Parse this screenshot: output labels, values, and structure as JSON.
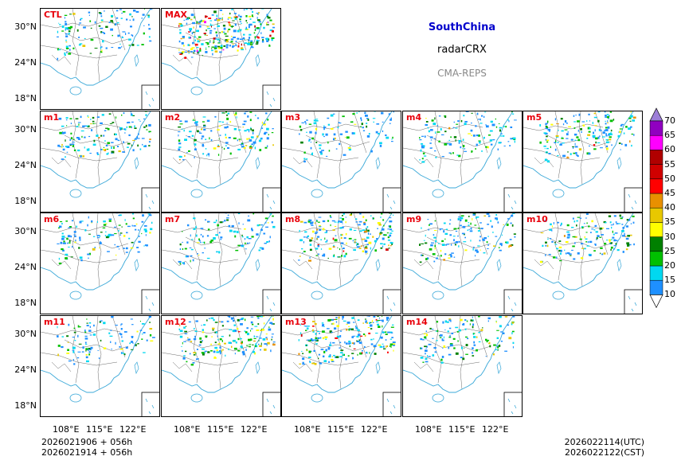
{
  "title": {
    "region": "SouthChina",
    "product": "radarCRX",
    "system": "CMA-REPS"
  },
  "panels": [
    {
      "id": "CTL",
      "label": "CTL",
      "row": 0,
      "col": 0,
      "intensity": 0.35
    },
    {
      "id": "MAX",
      "label": "MAX",
      "row": 0,
      "col": 1,
      "intensity": 1.0
    },
    {
      "id": "m1",
      "label": "m1",
      "row": 1,
      "col": 0,
      "intensity": 0.5
    },
    {
      "id": "m2",
      "label": "m2",
      "row": 1,
      "col": 1,
      "intensity": 0.45
    },
    {
      "id": "m3",
      "label": "m3",
      "row": 1,
      "col": 2,
      "intensity": 0.3
    },
    {
      "id": "m4",
      "label": "m4",
      "row": 1,
      "col": 3,
      "intensity": 0.4
    },
    {
      "id": "m5",
      "label": "m5",
      "row": 1,
      "col": 4,
      "intensity": 0.55
    },
    {
      "id": "m6",
      "label": "m6",
      "row": 2,
      "col": 0,
      "intensity": 0.35
    },
    {
      "id": "m7",
      "label": "m7",
      "row": 2,
      "col": 1,
      "intensity": 0.3
    },
    {
      "id": "m8",
      "label": "m8",
      "row": 2,
      "col": 2,
      "intensity": 0.65
    },
    {
      "id": "m9",
      "label": "m9",
      "row": 2,
      "col": 3,
      "intensity": 0.45
    },
    {
      "id": "m10",
      "label": "m10",
      "row": 2,
      "col": 4,
      "intensity": 0.5
    },
    {
      "id": "m11",
      "label": "m11",
      "row": 3,
      "col": 0,
      "intensity": 0.3
    },
    {
      "id": "m12",
      "label": "m12",
      "row": 3,
      "col": 1,
      "intensity": 0.6
    },
    {
      "id": "m13",
      "label": "m13",
      "row": 3,
      "col": 2,
      "intensity": 0.75
    },
    {
      "id": "m14",
      "label": "m14",
      "row": 3,
      "col": 3,
      "intensity": 0.4
    }
  ],
  "y_axis_ticks": [
    "30°N",
    "24°N",
    "18°N"
  ],
  "x_axis_ticks": [
    "108°E",
    "115°E",
    "122°E"
  ],
  "colorbar": {
    "levels": [
      "10",
      "15",
      "20",
      "25",
      "30",
      "35",
      "40",
      "45",
      "50",
      "55",
      "60",
      "65",
      "70"
    ],
    "colors": [
      "#1e90ff",
      "#00d8f0",
      "#00c000",
      "#008000",
      "#ffff00",
      "#e8c800",
      "#e89000",
      "#ff0000",
      "#d00000",
      "#b00000",
      "#ff00ff",
      "#9000c0",
      "#9d7fd8"
    ]
  },
  "footer": {
    "init_utc": "2026021906  +  056h",
    "init_cst": "2026021914  +  056h",
    "valid_utc": "2026022114(UTC)",
    "valid_cst": "2026022122(CST)"
  }
}
